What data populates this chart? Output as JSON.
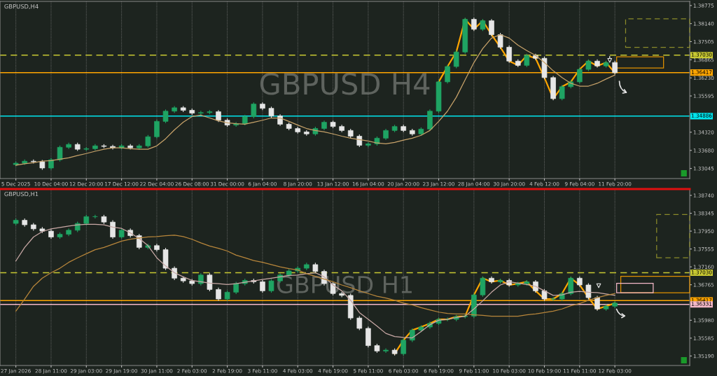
{
  "chart_data": [
    {
      "type": "candlestick",
      "title": "GBPUSD H4",
      "subtitle": "GBPUSD,H4",
      "grid": "x",
      "categories": [
        "5 Dec 2025",
        null,
        null,
        null,
        "10 Dec 04:00",
        null,
        null,
        null,
        "12 Dec 20:00",
        null,
        null,
        null,
        "17 Dec 12:00",
        null,
        null,
        null,
        "22 Dec 04:00",
        null,
        null,
        null,
        "26 Dec 08:00",
        null,
        null,
        null,
        "31 Dec 00:00",
        null,
        null,
        null,
        "6 Jan 04:00",
        null,
        null,
        null,
        "8 Jan 20:00",
        null,
        null,
        null,
        "13 Jan 12:00",
        null,
        null,
        null,
        "16 Jan 04:00",
        null,
        null,
        null,
        "20 Jan 20:00",
        null,
        null,
        null,
        "23 Jan 12:00",
        null,
        null,
        null,
        "28 Jan 04:00",
        null,
        null,
        null,
        "30 Jan 20:00",
        null,
        null,
        null,
        "4 Feb 12:00",
        null,
        null,
        null,
        "9 Feb 04:00",
        null,
        null,
        null,
        "11 Feb 20:00",
        null,
        null,
        null,
        null,
        null,
        null,
        null,
        null
      ],
      "ohlc": [
        [
          1.3318,
          1.3329,
          1.3312,
          1.3323
        ],
        [
          1.3323,
          1.3336,
          1.3317,
          1.333
        ],
        [
          1.333,
          1.3336,
          1.3322,
          1.3328
        ],
        [
          1.3328,
          1.3334,
          1.33,
          1.3306
        ],
        [
          1.3306,
          1.3341,
          1.33,
          1.3335
        ],
        [
          1.3335,
          1.3385,
          1.3329,
          1.3379
        ],
        [
          1.3379,
          1.3395,
          1.3373,
          1.3389
        ],
        [
          1.3389,
          1.3395,
          1.3366,
          1.3372
        ],
        [
          1.3372,
          1.338,
          1.3366,
          1.3374
        ],
        [
          1.3374,
          1.339,
          1.3368,
          1.3384
        ],
        [
          1.3384,
          1.339,
          1.3376,
          1.3382
        ],
        [
          1.3382,
          1.3388,
          1.3371,
          1.3377
        ],
        [
          1.3377,
          1.339,
          1.3371,
          1.3384
        ],
        [
          1.3384,
          1.339,
          1.3371,
          1.3377
        ],
        [
          1.3377,
          1.339,
          1.3371,
          1.3384
        ],
        [
          1.3384,
          1.3422,
          1.3378,
          1.3416
        ],
        [
          1.3416,
          1.3476,
          1.341,
          1.347
        ],
        [
          1.347,
          1.3512,
          1.3464,
          1.3506
        ],
        [
          1.3506,
          1.3524,
          1.35,
          1.3518
        ],
        [
          1.3518,
          1.3524,
          1.3503,
          1.3509
        ],
        [
          1.3509,
          1.3515,
          1.3493,
          1.3499
        ],
        [
          1.3499,
          1.3507,
          1.3493,
          1.3501
        ],
        [
          1.3501,
          1.351,
          1.3495,
          1.3504
        ],
        [
          1.3504,
          1.351,
          1.3468,
          1.3474
        ],
        [
          1.3474,
          1.348,
          1.3451,
          1.3457
        ],
        [
          1.3457,
          1.3468,
          1.3451,
          1.3462
        ],
        [
          1.3462,
          1.3493,
          1.3456,
          1.3487
        ],
        [
          1.3487,
          1.3537,
          1.3481,
          1.3531
        ],
        [
          1.3531,
          1.3537,
          1.351,
          1.3516
        ],
        [
          1.3516,
          1.3522,
          1.3483,
          1.3489
        ],
        [
          1.3489,
          1.3495,
          1.3454,
          1.346
        ],
        [
          1.346,
          1.3466,
          1.3439,
          1.3445
        ],
        [
          1.3445,
          1.3451,
          1.3427,
          1.3433
        ],
        [
          1.3433,
          1.3439,
          1.342,
          1.3426
        ],
        [
          1.3426,
          1.3451,
          1.342,
          1.3445
        ],
        [
          1.3445,
          1.3473,
          1.3439,
          1.3467
        ],
        [
          1.3467,
          1.3473,
          1.3446,
          1.3452
        ],
        [
          1.3452,
          1.3458,
          1.3432,
          1.3438
        ],
        [
          1.3438,
          1.3444,
          1.3412,
          1.3418
        ],
        [
          1.3418,
          1.3424,
          1.338,
          1.3386
        ],
        [
          1.3386,
          1.3397,
          1.338,
          1.3391
        ],
        [
          1.3391,
          1.3417,
          1.3385,
          1.3411
        ],
        [
          1.3411,
          1.3444,
          1.3405,
          1.3438
        ],
        [
          1.3438,
          1.3458,
          1.3432,
          1.3452
        ],
        [
          1.3452,
          1.3458,
          1.3432,
          1.3438
        ],
        [
          1.3438,
          1.3444,
          1.342,
          1.3426
        ],
        [
          1.3426,
          1.3449,
          1.342,
          1.3443
        ],
        [
          1.3443,
          1.3512,
          1.3437,
          1.3506
        ],
        [
          1.3506,
          1.3615,
          1.35,
          1.3609
        ],
        [
          1.3609,
          1.3669,
          1.3603,
          1.3663
        ],
        [
          1.3663,
          1.372,
          1.3657,
          1.3714
        ],
        [
          1.3714,
          1.3835,
          1.3708,
          1.3829
        ],
        [
          1.3829,
          1.3835,
          1.3788,
          1.3794
        ],
        [
          1.3794,
          1.383,
          1.3788,
          1.3824
        ],
        [
          1.3824,
          1.383,
          1.3769,
          1.3775
        ],
        [
          1.3775,
          1.3781,
          1.3725,
          1.3731
        ],
        [
          1.3731,
          1.3737,
          1.3676,
          1.3682
        ],
        [
          1.3682,
          1.3688,
          1.3661,
          1.3667
        ],
        [
          1.3667,
          1.3708,
          1.3661,
          1.3702
        ],
        [
          1.3702,
          1.3708,
          1.3686,
          1.3692
        ],
        [
          1.3692,
          1.3698,
          1.3618,
          1.3624
        ],
        [
          1.3624,
          1.363,
          1.3544,
          1.355
        ],
        [
          1.355,
          1.3598,
          1.3544,
          1.3592
        ],
        [
          1.3592,
          1.3615,
          1.3586,
          1.3609
        ],
        [
          1.3609,
          1.3659,
          1.3603,
          1.3653
        ],
        [
          1.3653,
          1.3688,
          1.3647,
          1.3682
        ],
        [
          1.3682,
          1.3688,
          1.3659,
          1.3665
        ],
        [
          1.3665,
          1.3683,
          1.3659,
          1.3677
        ],
        [
          1.3677,
          1.3683,
          1.3635,
          1.3641
        ],
        null,
        null,
        null,
        null,
        null,
        null,
        null,
        null
      ],
      "series": [
        {
          "type": "line",
          "color": "#c8a36a",
          "values": [
            1.3316,
            1.3321,
            1.3325,
            1.333,
            1.3332,
            1.3337,
            1.3342,
            1.335,
            1.3357,
            1.3365,
            1.3372,
            1.3377,
            1.3377,
            1.3374,
            1.3372,
            1.3372,
            1.3384,
            1.3409,
            1.344,
            1.3467,
            1.3487,
            1.3492,
            1.3482,
            1.3472,
            1.3465,
            1.3462,
            1.346,
            1.3467,
            1.3474,
            1.3482,
            1.3482,
            1.347,
            1.3457,
            1.3445,
            1.3438,
            1.3433,
            1.3426,
            1.3418,
            1.3411,
            1.3406,
            1.3401,
            1.3394,
            1.3391,
            1.3396,
            1.3404,
            1.3411,
            1.3421,
            1.3438,
            1.347,
            1.3506,
            1.3555,
            1.3616,
            1.3677,
            1.3726,
            1.3763,
            1.3775,
            1.3763,
            1.3738,
            1.3719,
            1.3702,
            1.3677,
            1.3648,
            1.3624,
            1.3604,
            1.3594,
            1.3594,
            1.3604,
            1.3619,
            1.3633,
            null,
            null,
            null,
            null,
            null,
            null,
            null,
            null
          ]
        },
        {
          "type": "line",
          "color": "#ffa500",
          "values": [
            null,
            null,
            null,
            null,
            null,
            null,
            null,
            null,
            null,
            null,
            null,
            null,
            null,
            null,
            null,
            null,
            null,
            null,
            null,
            null,
            null,
            null,
            null,
            null,
            null,
            null,
            null,
            null,
            null,
            null,
            null,
            null,
            null,
            null,
            null,
            null,
            null,
            null,
            null,
            null,
            null,
            null,
            null,
            null,
            null,
            null,
            null,
            null,
            1.3609,
            1.3663,
            1.3714,
            1.3829,
            1.3794,
            1.3824,
            1.3775,
            1.3731,
            1.3682,
            1.3667,
            1.3702,
            1.3692,
            1.3624,
            1.355,
            1.3592,
            1.3609,
            1.3653,
            1.3682,
            1.3665,
            1.3677,
            1.3641,
            null,
            null,
            null,
            null,
            null,
            null,
            null,
            null
          ]
        }
      ],
      "ref_lines": [
        {
          "axis": "y",
          "value": 1.3703,
          "label": "1.37030",
          "color": "#c8c832",
          "line_style": "dashed"
        },
        {
          "axis": "y",
          "value": 1.36417,
          "label": "1.36417",
          "color": "#ffa500",
          "line_style": "solid"
        },
        {
          "axis": "y",
          "value": 1.34886,
          "label": "1.34886",
          "color": "#00e5ee",
          "line_style": "solid"
        }
      ],
      "ylim": [
        1.3269,
        1.3892
      ],
      "yticks": [
        1.38775,
        {
          "value": 1.3814,
          "label": "1.38140"
        },
        1.37505,
        1.36865,
        {
          "value": 1.3623,
          "label": "1.36230"
        },
        1.35595,
        {
          "value": 1.3432,
          "label": "1.34320"
        },
        {
          "value": 1.3368,
          "label": "1.33680"
        },
        1.33045
      ]
    },
    {
      "type": "candlestick",
      "title": "GBPUSD H1",
      "subtitle": "GBPUSD,H1",
      "grid": "x",
      "categories": [
        "27 Jan 2026",
        null,
        null,
        null,
        "28 Jan 11:00",
        null,
        null,
        null,
        "29 Jan 03:00",
        null,
        null,
        null,
        "29 Jan 19:00",
        null,
        null,
        null,
        "30 Jan 11:00",
        null,
        null,
        null,
        "2 Feb 03:00",
        null,
        null,
        null,
        "2 Feb 19:00",
        null,
        null,
        null,
        "3 Feb 11:00",
        null,
        null,
        null,
        "4 Feb 03:00",
        null,
        null,
        null,
        "4 Feb 19:00",
        null,
        null,
        null,
        "5 Feb 11:00",
        null,
        null,
        null,
        "6 Feb 03:00",
        null,
        null,
        null,
        "6 Feb 19:00",
        null,
        null,
        null,
        "9 Feb 11:00",
        null,
        null,
        null,
        "10 Feb 03:00",
        null,
        null,
        null,
        "10 Feb 19:00",
        null,
        null,
        null,
        "11 Feb 11:00",
        null,
        null,
        null,
        "12 Feb 03:00",
        null,
        null,
        null,
        null,
        null,
        null,
        null,
        null
      ],
      "ohlc": [
        [
          1.3812,
          1.3823,
          1.3808,
          1.3819
        ],
        [
          1.3819,
          1.3823,
          1.3805,
          1.3809
        ],
        [
          1.3809,
          1.3813,
          1.3796,
          1.38
        ],
        [
          1.38,
          1.3804,
          1.3791,
          1.3795
        ],
        [
          1.3795,
          1.3799,
          1.3778,
          1.3782
        ],
        [
          1.3782,
          1.3792,
          1.3778,
          1.3788
        ],
        [
          1.3788,
          1.3801,
          1.3784,
          1.3797
        ],
        [
          1.3797,
          1.3816,
          1.3793,
          1.3812
        ],
        [
          1.3812,
          1.3831,
          1.3808,
          1.3827
        ],
        [
          1.3827,
          1.3831,
          1.3823,
          1.3827
        ],
        [
          1.3827,
          1.3831,
          1.3811,
          1.3815
        ],
        [
          1.3815,
          1.3819,
          1.3778,
          1.3782
        ],
        [
          1.3782,
          1.3801,
          1.3778,
          1.3797
        ],
        [
          1.3797,
          1.3801,
          1.3781,
          1.3785
        ],
        [
          1.3785,
          1.3789,
          1.3755,
          1.3759
        ],
        [
          1.3759,
          1.3767,
          1.3755,
          1.3763
        ],
        [
          1.3763,
          1.3767,
          1.375,
          1.3754
        ],
        [
          1.3754,
          1.3758,
          1.3709,
          1.3713
        ],
        [
          1.3713,
          1.3717,
          1.3687,
          1.3691
        ],
        [
          1.3691,
          1.3695,
          1.3681,
          1.3685
        ],
        [
          1.3685,
          1.3689,
          1.3675,
          1.3679
        ],
        [
          1.3679,
          1.3702,
          1.3675,
          1.3698
        ],
        [
          1.3698,
          1.3702,
          1.3662,
          1.3666
        ],
        [
          1.3666,
          1.367,
          1.3641,
          1.3645
        ],
        [
          1.3645,
          1.3664,
          1.3641,
          1.366
        ],
        [
          1.366,
          1.3683,
          1.3656,
          1.3679
        ],
        [
          1.3679,
          1.369,
          1.3675,
          1.3686
        ],
        [
          1.3686,
          1.369,
          1.3679,
          1.3683
        ],
        [
          1.3683,
          1.3687,
          1.3659,
          1.3663
        ],
        [
          1.3663,
          1.3689,
          1.3659,
          1.3685
        ],
        [
          1.3685,
          1.3702,
          1.3681,
          1.3698
        ],
        [
          1.3698,
          1.3711,
          1.3694,
          1.3707
        ],
        [
          1.3707,
          1.3717,
          1.3703,
          1.3713
        ],
        [
          1.3713,
          1.3725,
          1.3709,
          1.3721
        ],
        [
          1.3721,
          1.3725,
          1.3702,
          1.3706
        ],
        [
          1.3706,
          1.371,
          1.3675,
          1.3679
        ],
        [
          1.3679,
          1.3683,
          1.3653,
          1.3657
        ],
        [
          1.3657,
          1.3661,
          1.3649,
          1.3653
        ],
        [
          1.3653,
          1.3657,
          1.3599,
          1.3603
        ],
        [
          1.3603,
          1.3607,
          1.3576,
          1.358
        ],
        [
          1.358,
          1.3584,
          1.3538,
          1.3542
        ],
        [
          1.3542,
          1.3546,
          1.3526,
          1.353
        ],
        [
          1.353,
          1.3536,
          1.3526,
          1.3532
        ],
        [
          1.3532,
          1.3536,
          1.352,
          1.3524
        ],
        [
          1.3524,
          1.3558,
          1.352,
          1.3554
        ],
        [
          1.3554,
          1.358,
          1.355,
          1.3576
        ],
        [
          1.3576,
          1.3587,
          1.3572,
          1.3583
        ],
        [
          1.3583,
          1.3595,
          1.3579,
          1.3591
        ],
        [
          1.3591,
          1.3604,
          1.3587,
          1.36
        ],
        [
          1.36,
          1.3604,
          1.3596,
          1.36
        ],
        [
          1.36,
          1.361,
          1.3596,
          1.3606
        ],
        [
          1.3606,
          1.3611,
          1.3602,
          1.3607
        ],
        [
          1.3607,
          1.3658,
          1.3603,
          1.3654
        ],
        [
          1.3654,
          1.3695,
          1.365,
          1.3691
        ],
        [
          1.3691,
          1.3695,
          1.3679,
          1.3683
        ],
        [
          1.3683,
          1.369,
          1.3679,
          1.3686
        ],
        [
          1.3686,
          1.369,
          1.3672,
          1.3676
        ],
        [
          1.3676,
          1.3683,
          1.3672,
          1.3679
        ],
        [
          1.3679,
          1.3687,
          1.3675,
          1.3683
        ],
        [
          1.3683,
          1.3687,
          1.3659,
          1.3663
        ],
        [
          1.3663,
          1.3667,
          1.3641,
          1.3645
        ],
        [
          1.3645,
          1.3649,
          1.3641,
          1.3645
        ],
        [
          1.3645,
          1.3661,
          1.3641,
          1.3657
        ],
        [
          1.3657,
          1.3695,
          1.3653,
          1.3691
        ],
        [
          1.3691,
          1.3695,
          1.3672,
          1.3676
        ],
        [
          1.3676,
          1.368,
          1.3644,
          1.3648
        ],
        [
          1.3648,
          1.3652,
          1.3619,
          1.3623
        ],
        [
          1.3623,
          1.3633,
          1.3619,
          1.3629
        ],
        [
          1.3629,
          1.364,
          1.3625,
          1.3636
        ],
        null,
        null,
        null,
        null,
        null,
        null,
        null,
        null
      ],
      "series": [
        {
          "type": "line",
          "color": "#c9a9a6",
          "values": [
            1.3729,
            1.3759,
            1.3782,
            1.3794,
            1.38,
            1.3803,
            1.3806,
            1.3809,
            1.381,
            1.381,
            1.3809,
            1.3804,
            1.3801,
            1.3791,
            1.3779,
            1.3763,
            1.3736,
            1.3718,
            1.3703,
            1.3694,
            1.3686,
            1.3683,
            1.368,
            1.3679,
            1.3677,
            1.3679,
            1.3682,
            1.3685,
            1.3688,
            1.3691,
            1.3694,
            1.3697,
            1.3698,
            1.3701,
            1.3703,
            1.3694,
            1.3676,
            1.3663,
            1.3642,
            1.3615,
            1.36,
            1.3585,
            1.3569,
            1.3562,
            1.356,
            1.3559,
            1.3573,
            1.3588,
            1.3598,
            1.36,
            1.3604,
            1.3607,
            1.3623,
            1.3641,
            1.366,
            1.3676,
            1.3683,
            1.368,
            1.3677,
            1.3673,
            1.3663,
            1.3653,
            1.3654,
            1.366,
            1.3662,
            1.366,
            1.3659,
            1.3656,
            1.3653,
            null,
            null,
            null,
            null,
            null,
            null,
            null,
            null
          ]
        },
        {
          "type": "line",
          "color": "#b8863b",
          "values": [
            1.3618,
            1.3645,
            1.3673,
            1.3691,
            1.3703,
            1.3713,
            1.3726,
            1.3736,
            1.3745,
            1.3754,
            1.3759,
            1.3766,
            1.3773,
            1.3777,
            1.378,
            1.3782,
            1.3783,
            1.3785,
            1.3786,
            1.3783,
            1.3777,
            1.3769,
            1.3762,
            1.3757,
            1.3751,
            1.3742,
            1.3736,
            1.373,
            1.3726,
            1.3721,
            1.3716,
            1.3712,
            1.3709,
            1.3701,
            1.3695,
            1.3689,
            1.3683,
            1.3676,
            1.367,
            1.3663,
            1.3657,
            1.3651,
            1.3647,
            1.3642,
            1.3636,
            1.3632,
            1.3626,
            1.3621,
            1.3616,
            1.3613,
            1.3612,
            1.3612,
            1.361,
            1.3609,
            1.3607,
            1.3607,
            1.3607,
            1.3607,
            1.361,
            1.3612,
            1.3615,
            1.3618,
            1.3623,
            1.363,
            1.3635,
            1.3642,
            1.3648,
            1.3653,
            1.3657,
            null,
            null,
            null,
            null,
            null,
            null,
            null,
            null
          ]
        },
        {
          "type": "line",
          "color": "#ffa500",
          "values": [
            null,
            null,
            null,
            null,
            null,
            null,
            null,
            null,
            null,
            null,
            null,
            null,
            null,
            null,
            null,
            null,
            null,
            null,
            null,
            null,
            null,
            null,
            null,
            null,
            null,
            null,
            null,
            null,
            null,
            null,
            null,
            null,
            null,
            null,
            null,
            null,
            null,
            null,
            null,
            null,
            null,
            null,
            null,
            1.3524,
            1.3554,
            1.3576,
            1.3583,
            1.3591,
            1.36,
            1.36,
            1.3606,
            1.3607,
            1.3654,
            1.3691,
            1.3683,
            1.3686,
            1.3676,
            1.3679,
            1.3683,
            1.3663,
            1.3645,
            1.3645,
            1.3657,
            1.3691,
            1.3676,
            1.3648,
            1.3623,
            1.3629,
            1.3636,
            null,
            null,
            null,
            null,
            null,
            null,
            null,
            null
          ]
        }
      ],
      "ref_lines": [
        {
          "axis": "y",
          "value": 1.3703,
          "label": "1.37030",
          "color": "#c8c832",
          "line_style": "dashed"
        },
        {
          "axis": "y",
          "value": 1.36417,
          "label": "1.36417",
          "color": "#ffa500",
          "line_style": "solid"
        },
        {
          "axis": "y",
          "value": 1.36331,
          "label": "1.36331",
          "color": "#f4b8c8",
          "line_style": "solid"
        }
      ],
      "ylim": [
        1.3498,
        1.3888
      ],
      "yticks": [
        {
          "value": 1.3874,
          "label": "1.38740"
        },
        1.38345,
        {
          "value": 1.3795,
          "label": "1.37950"
        },
        1.37555,
        {
          "value": 1.3716,
          "label": "1.37160"
        },
        1.36765,
        {
          "value": 1.3598,
          "label": "1.35980"
        },
        1.35585,
        {
          "value": 1.3519,
          "label": "1.35190"
        }
      ]
    }
  ]
}
